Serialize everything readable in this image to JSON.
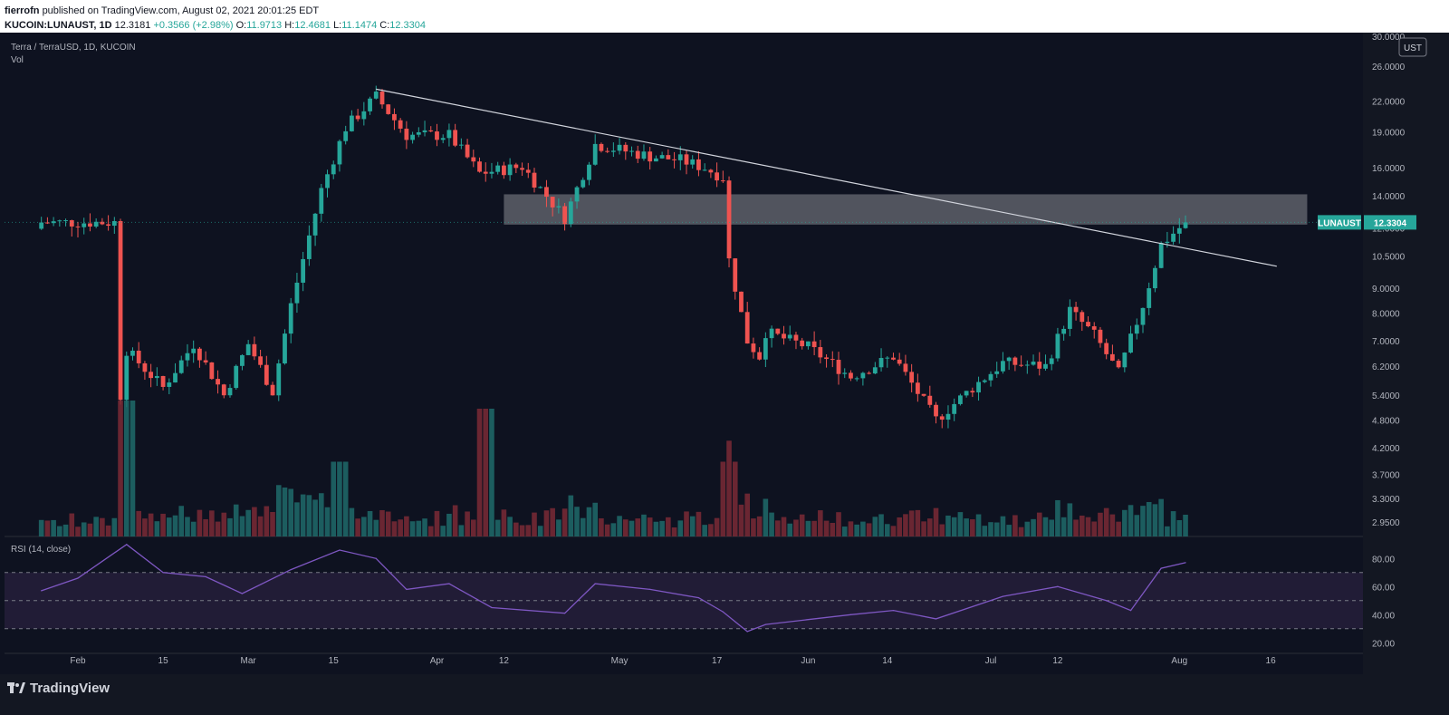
{
  "header": {
    "publisher": "fierrofn",
    "published_text": "published on TradingView.com, August 02, 2021 20:01:25 EDT",
    "symbol": "KUCOIN:LUNAUST, 1D",
    "last": "12.3181",
    "change": "+0.3566 (+2.98%)",
    "o_label": "O:",
    "o": "11.9713",
    "h_label": "H:",
    "h": "12.4681",
    "l_label": "L:",
    "l": "11.1474",
    "c_label": "C:",
    "c": "12.3304"
  },
  "legend": {
    "title": "Terra / TerraUSD, 1D, KUCOIN",
    "vol": "Vol"
  },
  "rsi": {
    "label": "RSI (14, close)"
  },
  "footer": {
    "brand": "TradingView"
  },
  "colors": {
    "background": "#0e1220",
    "up": "#26a69a",
    "down": "#ef5350",
    "up_volume": "#1e6b6b",
    "down_volume": "#7a2a36",
    "rsi_line": "#7e57c2",
    "rsi_band": "#2a2140",
    "price_badge": "#26a69a"
  },
  "chart_data": [
    {
      "type": "candlestick",
      "title": "Terra / TerraUSD, 1D, KUCOIN",
      "currency_label": "UST",
      "y_scale": "log",
      "ylim": [
        2.75,
        30.0
      ],
      "y_ticks": [
        "30.0000",
        "26.0000",
        "22.0000",
        "19.0000",
        "16.0000",
        "14.0000",
        "12.0000",
        "10.5000",
        "9.0000",
        "8.0000",
        "7.0000",
        "6.2000",
        "5.4000",
        "4.8000",
        "4.2000",
        "3.7000",
        "3.3000",
        "2.9500"
      ],
      "x_ticks": [
        "Feb",
        "15",
        "Mar",
        "15",
        "Apr",
        "12",
        "May",
        "17",
        "Jun",
        "14",
        "Jul",
        "12",
        "Aug",
        "16"
      ],
      "last_price_label": "LUNAUST",
      "last_price": "12.3304",
      "trendline": {
        "from": [
          "Mar 22",
          23.3
        ],
        "to": [
          "Aug 17",
          10.0
        ]
      },
      "resistance_zone": {
        "from": "Apr 12",
        "to": "Aug 22",
        "low": 12.2,
        "high": 14.1
      },
      "ohlc_checkpoints": [
        {
          "date": "Feb 8",
          "close": 5.4
        },
        {
          "date": "Feb 9",
          "close": 6.7
        },
        {
          "date": "Feb 15",
          "close": 5.6
        },
        {
          "date": "Feb 20",
          "close": 6.9
        },
        {
          "date": "Feb 25",
          "close": 5.4
        },
        {
          "date": "Mar 1",
          "close": 6.9
        },
        {
          "date": "Mar 5",
          "close": 5.5
        },
        {
          "date": "Mar 8",
          "close": 8.3
        },
        {
          "date": "Mar 13",
          "close": 14.4
        },
        {
          "date": "Mar 17",
          "close": 19.4
        },
        {
          "date": "Mar 22",
          "close": 22.5
        },
        {
          "date": "Mar 27",
          "close": 18.7
        },
        {
          "date": "Apr 3",
          "close": 18.7
        },
        {
          "date": "Apr 8",
          "close": 15.6
        },
        {
          "date": "Apr 15",
          "close": 16.1
        },
        {
          "date": "Apr 22",
          "close": 12.6
        },
        {
          "date": "Apr 27",
          "close": 17.9
        },
        {
          "date": "May 6",
          "close": 16.9
        },
        {
          "date": "May 11",
          "close": 16.6
        },
        {
          "date": "May 15",
          "close": 16.0
        },
        {
          "date": "May 18",
          "close": 15.3
        },
        {
          "date": "May 19",
          "close": 10.3
        },
        {
          "date": "May 22",
          "close": 7.0
        },
        {
          "date": "May 24",
          "close": 6.5
        },
        {
          "date": "May 25",
          "close": 7.3
        },
        {
          "date": "Jun 1",
          "close": 6.8
        },
        {
          "date": "Jun 8",
          "close": 5.9
        },
        {
          "date": "Jun 15",
          "close": 6.5
        },
        {
          "date": "Jun 22",
          "close": 4.8
        },
        {
          "date": "Jun 28",
          "close": 5.6
        },
        {
          "date": "Jul 3",
          "close": 6.3
        },
        {
          "date": "Jul 10",
          "close": 6.2
        },
        {
          "date": "Jul 14",
          "close": 8.1
        },
        {
          "date": "Jul 18",
          "close": 7.2
        },
        {
          "date": "Jul 22",
          "close": 6.0
        },
        {
          "date": "Jul 26",
          "close": 8.3
        },
        {
          "date": "Jul 29",
          "close": 11.1
        },
        {
          "date": "Aug 2",
          "close": 12.33
        }
      ]
    },
    {
      "type": "bar",
      "title": "Vol",
      "volume_relative_peaks": [
        {
          "date": "Feb 9",
          "value": 1.0
        },
        {
          "date": "Mar 16",
          "value": 0.55
        },
        {
          "date": "Apr 9",
          "value": 0.94
        },
        {
          "date": "May 19",
          "value": 0.55
        },
        {
          "date": "Aug 2",
          "value": 0.12
        }
      ]
    },
    {
      "type": "line",
      "title": "RSI (14, close)",
      "ylim": [
        15,
        95
      ],
      "y_ticks": [
        "80.00",
        "60.00",
        "40.00",
        "20.00"
      ],
      "bands": [
        70,
        50,
        30
      ],
      "values": [
        {
          "date": "Jan 26",
          "value": 57
        },
        {
          "date": "Feb 1",
          "value": 66
        },
        {
          "date": "Feb 9",
          "value": 90
        },
        {
          "date": "Feb 15",
          "value": 70
        },
        {
          "date": "Feb 22",
          "value": 67
        },
        {
          "date": "Feb 28",
          "value": 55
        },
        {
          "date": "Mar 8",
          "value": 72
        },
        {
          "date": "Mar 16",
          "value": 86
        },
        {
          "date": "Mar 22",
          "value": 80
        },
        {
          "date": "Mar 27",
          "value": 58
        },
        {
          "date": "Apr 3",
          "value": 62
        },
        {
          "date": "Apr 10",
          "value": 45
        },
        {
          "date": "Apr 22",
          "value": 41
        },
        {
          "date": "Apr 27",
          "value": 62
        },
        {
          "date": "May 6",
          "value": 58
        },
        {
          "date": "May 14",
          "value": 52
        },
        {
          "date": "May 18",
          "value": 42
        },
        {
          "date": "May 22",
          "value": 28
        },
        {
          "date": "May 25",
          "value": 33
        },
        {
          "date": "Jun 8",
          "value": 40
        },
        {
          "date": "Jun 15",
          "value": 43
        },
        {
          "date": "Jun 22",
          "value": 37
        },
        {
          "date": "Jul 3",
          "value": 53
        },
        {
          "date": "Jul 12",
          "value": 60
        },
        {
          "date": "Jul 20",
          "value": 50
        },
        {
          "date": "Jul 24",
          "value": 43
        },
        {
          "date": "Jul 29",
          "value": 73
        },
        {
          "date": "Aug 2",
          "value": 77
        }
      ]
    }
  ]
}
